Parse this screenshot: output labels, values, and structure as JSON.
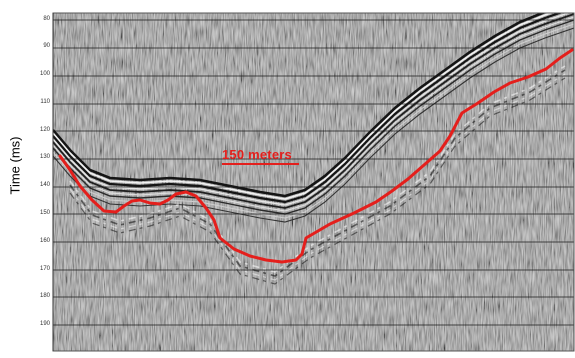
{
  "figure": {
    "y_axis_label": "Time (ms)",
    "y_tick_labels": [
      "80",
      "90",
      "100",
      "110",
      "120",
      "130",
      "140",
      "150",
      "160",
      "170",
      "180",
      "190"
    ],
    "scale_bar_label": "150 meters",
    "interpretation_color": "#e41f1c",
    "grid_color": "#1a1a1a"
  }
}
